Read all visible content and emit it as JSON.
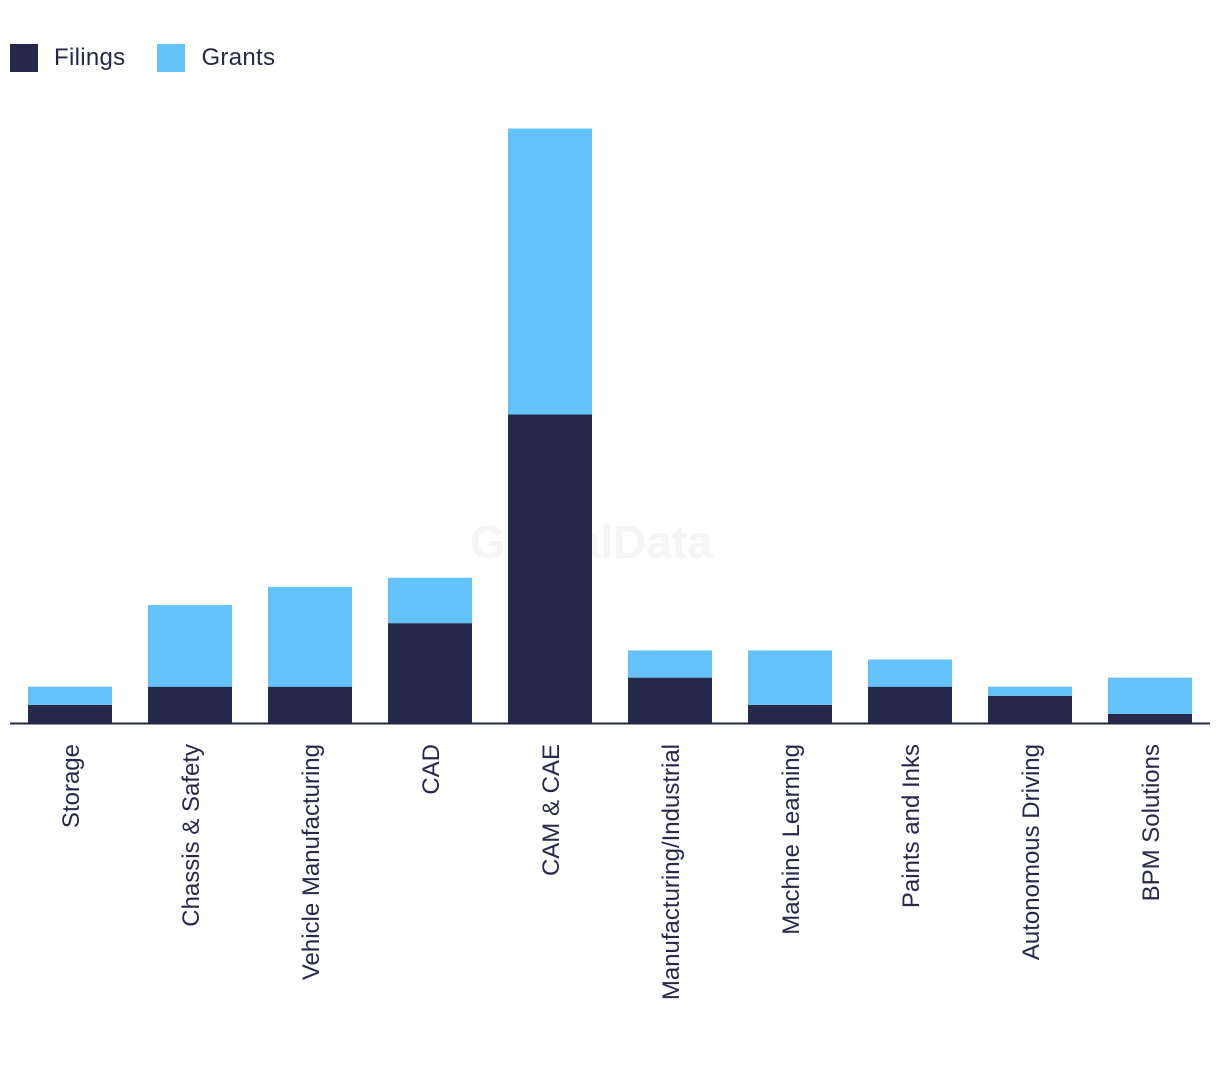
{
  "legend": {
    "filings_label": "Filings",
    "grants_label": "Grants"
  },
  "watermark": "GlobalData",
  "colors": {
    "filings": "#26284a",
    "grants": "#63c2fa",
    "axis": "#26284a",
    "tick_text": "#26284a"
  },
  "chart_data": {
    "type": "bar",
    "stacked": true,
    "categories": [
      "Storage",
      "Chassis & Safety",
      "Vehicle Manufacturing",
      "CAD",
      "CAM & CAE",
      "Manufacturing/Industrial",
      "Machine Learning",
      "Paints and Inks",
      "Autonomous Driving",
      "BPM Solutions"
    ],
    "series": [
      {
        "name": "Filings",
        "values": [
          2,
          4,
          4,
          11,
          34,
          5,
          2,
          4,
          3,
          1
        ]
      },
      {
        "name": "Grants",
        "values": [
          2,
          9,
          11,
          5,
          31.5,
          3,
          6,
          3,
          1,
          4
        ]
      }
    ],
    "ylim": [
      0,
      66
    ],
    "grid": false,
    "legend_position": "top-left",
    "title": "",
    "xlabel": "",
    "ylabel": ""
  }
}
